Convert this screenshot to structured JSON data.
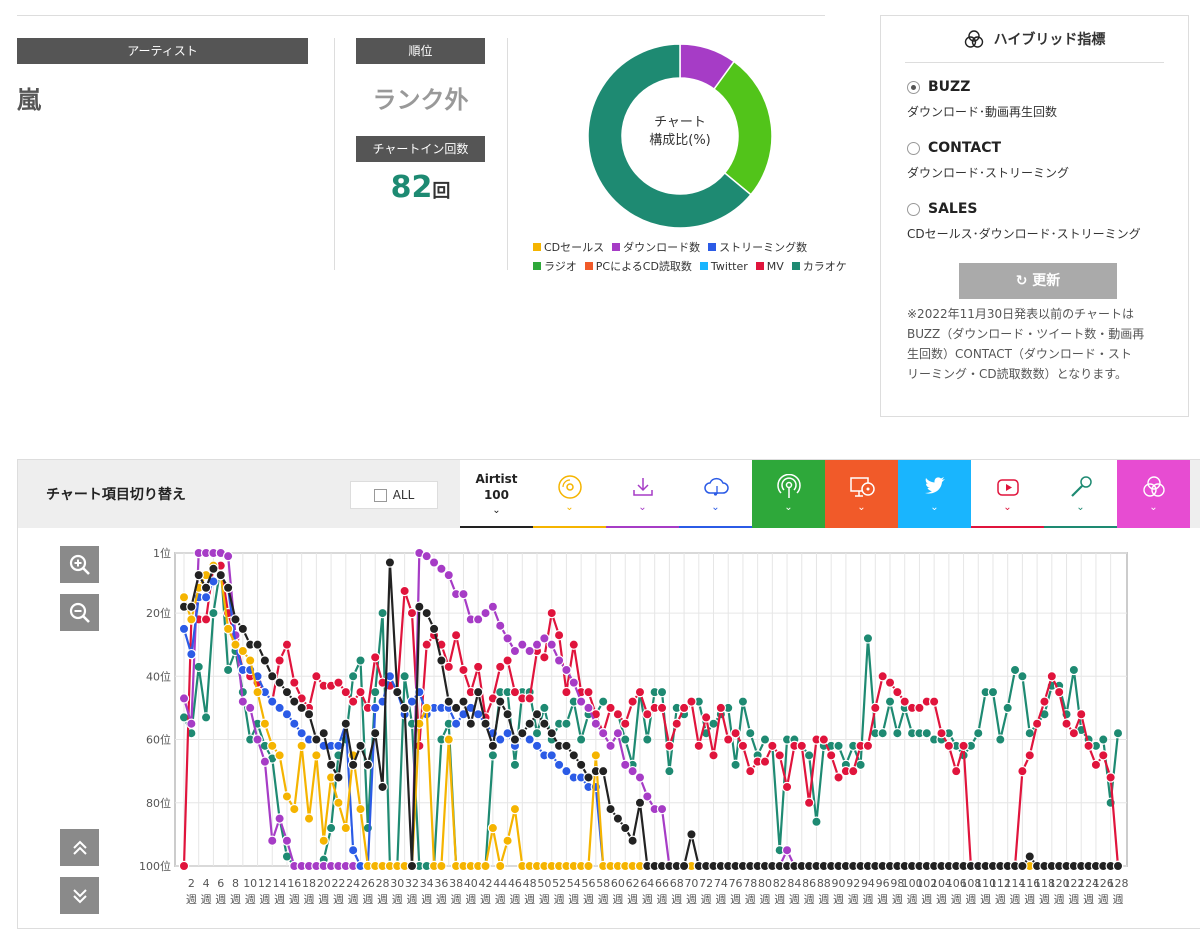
{
  "colors": {
    "cd": "#f5b400",
    "download": "#a63cc6",
    "stream": "#2b5be6",
    "radio": "#2ea83a",
    "pc": "#f15a29",
    "twitter": "#19b5fe",
    "mv": "#e0143c",
    "karaoke": "#1e8a72",
    "airtist": "#222222"
  },
  "header": {
    "artist_label": "アーティスト",
    "artist_name": "嵐",
    "rank_label": "順位",
    "rank_value": "ランク外",
    "chartin_label": "チャートイン回数",
    "chartin_value": "82",
    "chartin_unit": "回"
  },
  "donut": {
    "center_line1": "チャート",
    "center_line2": "構成比(%)",
    "legend_row1": [
      "CDセールス",
      "ダウンロード数",
      "ストリーミング数"
    ],
    "legend_row2": [
      "ラジオ",
      "PCによるCD読取数",
      "Twitter",
      "MV",
      "カラオケ"
    ]
  },
  "panel": {
    "title": "ハイブリッド指標",
    "options": [
      {
        "name": "BUZZ",
        "desc": "ダウンロード･動画再生回数",
        "selected": true
      },
      {
        "name": "CONTACT",
        "desc": "ダウンロード･ストリーミング",
        "selected": false
      },
      {
        "name": "SALES",
        "desc": "CDセールス･ダウンロード･ストリーミング",
        "selected": false
      }
    ],
    "refresh_label": "更新",
    "refresh_icon": "refresh-icon",
    "note_lines": [
      "※2022年11月30日発表以前のチャートは",
      "BUZZ（ダウンロード・ツイート数・動画再",
      "生回数）CONTACT（ダウンロード・スト",
      "リーミング・CD読取数数）となります。"
    ]
  },
  "chart_toolbar": {
    "title": "チャート項目切り替え",
    "all_label": "ALL",
    "tabs": [
      {
        "label_line1": "Airtist",
        "label_line2": "100",
        "icon": "airtist-text",
        "color": "#222222",
        "bg": "#ffffff"
      },
      {
        "icon": "cd-icon",
        "color": "#f5b400",
        "bg": "#ffffff"
      },
      {
        "icon": "download-icon",
        "color": "#a63cc6",
        "bg": "#ffffff"
      },
      {
        "icon": "cloud-music-icon",
        "color": "#2b5be6",
        "bg": "#ffffff"
      },
      {
        "icon": "radio-icon",
        "color": "#2ea83a",
        "bg": "#2ea83a"
      },
      {
        "icon": "pc-cd-icon",
        "color": "#f15a29",
        "bg": "#f15a29"
      },
      {
        "icon": "twitter-icon",
        "color": "#19b5fe",
        "bg": "#19b5fe"
      },
      {
        "icon": "youtube-icon",
        "color": "#e0143c",
        "bg": "#ffffff"
      },
      {
        "icon": "microphone-icon",
        "color": "#1e8a72",
        "bg": "#ffffff"
      },
      {
        "icon": "hybrid-icon",
        "color": "#e74cd2",
        "bg": "#e74cd2"
      }
    ]
  },
  "chart_data": [
    {
      "type": "pie",
      "title": "チャート構成比(%)",
      "categories": [
        "ダウンロード数",
        "ラジオ",
        "カラオケ"
      ],
      "values": [
        10,
        26,
        64
      ],
      "colors": [
        "#a63cc6",
        "#52c41a",
        "#1e8a72"
      ]
    },
    {
      "type": "line",
      "y_reversed": true,
      "ylim": [
        1,
        100
      ],
      "ytick_labels": [
        "1位",
        "20位",
        "40位",
        "60位",
        "80位",
        "100位"
      ],
      "yticks": [
        1,
        20,
        40,
        60,
        80,
        100
      ],
      "x_tick_labels": [
        "2\n週",
        "4\n週",
        "6\n週",
        "8\n週",
        "10\n週",
        "12\n週",
        "14\n週",
        "16\n週",
        "18\n週",
        "20\n週",
        "22\n週",
        "24\n週",
        "26\n週",
        "28\n週",
        "30\n週",
        "32\n週",
        "34\n週",
        "36\n週",
        "38\n週",
        "40\n週",
        "42\n週",
        "44\n週",
        "46\n週",
        "48\n週",
        "50\n週",
        "52\n週",
        "54\n週",
        "56\n週",
        "58\n週",
        "60\n週",
        "62\n週",
        "64\n週",
        "66\n週",
        "68\n週",
        "70\n週",
        "72\n週",
        "74\n週",
        "76\n週",
        "78\n週",
        "80\n週",
        "82\n週",
        "84\n週",
        "86\n週",
        "88\n週",
        "90\n週",
        "92\n週",
        "94\n週",
        "96\n週",
        "98\n週",
        "100\n週",
        "102\n週",
        "104\n週",
        "106\n週",
        "108\n週",
        "110\n週",
        "112\n週",
        "114\n週",
        "116\n週",
        "118\n週",
        "120\n週",
        "122\n週",
        "124\n週",
        "126\n週",
        "128\n週"
      ],
      "n_weeks": 128,
      "series": [
        {
          "key": "karaoke",
          "color": "#1e8a72",
          "values": [
            53,
            58,
            37,
            53,
            20,
            5,
            38,
            32,
            45,
            60,
            55,
            62,
            66,
            85,
            97,
            100,
            100,
            100,
            100,
            98,
            88,
            65,
            60,
            40,
            35,
            88,
            45,
            20,
            100,
            100,
            40,
            55,
            100,
            100,
            100,
            60,
            55,
            100,
            100,
            100,
            100,
            100,
            65,
            45,
            45,
            68,
            45,
            45,
            58,
            50,
            60,
            55,
            55,
            48,
            60,
            52,
            52,
            48,
            50,
            52,
            60,
            68,
            45,
            60,
            45,
            45,
            70,
            50,
            52,
            48,
            48,
            58,
            55,
            52,
            50,
            68,
            48,
            58,
            65,
            60,
            62,
            95,
            60,
            60,
            62,
            65,
            86,
            62,
            62,
            62,
            68,
            62,
            68,
            28,
            58,
            58,
            48,
            58,
            50,
            58,
            58,
            58,
            60,
            60,
            58,
            62,
            65,
            62,
            58,
            45,
            45,
            60,
            50,
            38,
            40,
            58,
            55,
            52,
            43,
            43,
            52,
            38,
            57,
            60,
            62,
            60,
            80,
            58
          ]
        },
        {
          "key": "mv",
          "color": "#e0143c",
          "values": [
            100,
            22,
            22,
            22,
            5,
            5,
            20,
            28,
            38,
            40,
            42,
            45,
            48,
            35,
            30,
            42,
            47,
            50,
            40,
            43,
            43,
            42,
            45,
            48,
            45,
            50,
            34,
            42,
            43,
            45,
            13,
            20,
            62,
            30,
            27,
            30,
            37,
            27,
            38,
            45,
            37,
            53,
            47,
            37,
            35,
            45,
            47,
            47,
            32,
            34,
            20,
            27,
            45,
            30,
            45,
            45,
            52,
            58,
            50,
            52,
            55,
            48,
            45,
            52,
            50,
            50,
            62,
            55,
            50,
            48,
            62,
            53,
            65,
            50,
            60,
            58,
            62,
            70,
            67,
            67,
            62,
            65,
            75,
            62,
            62,
            80,
            60,
            60,
            65,
            72,
            70,
            70,
            62,
            62,
            50,
            40,
            42,
            45,
            48,
            50,
            50,
            48,
            48,
            58,
            62,
            70,
            62,
            100,
            100,
            100,
            100,
            100,
            100,
            100,
            70,
            65,
            55,
            48,
            40,
            45,
            55,
            58,
            52,
            62,
            68,
            65,
            72,
            100
          ]
        },
        {
          "key": "download",
          "color": "#a63cc6",
          "values": [
            47,
            55,
            1,
            1,
            1,
            1,
            2,
            27,
            48,
            50,
            60,
            67,
            92,
            85,
            92,
            100,
            100,
            100,
            100,
            100,
            100,
            100,
            100,
            100,
            100,
            100,
            100,
            100,
            100,
            100,
            100,
            100,
            1,
            2,
            4,
            6,
            8,
            14,
            14,
            22,
            22,
            20,
            18,
            24,
            28,
            32,
            30,
            32,
            30,
            28,
            30,
            35,
            38,
            42,
            48,
            50,
            55,
            58,
            62,
            58,
            68,
            70,
            72,
            78,
            82,
            82,
            100,
            100,
            100,
            100,
            100,
            100,
            100,
            100,
            100,
            100,
            100,
            100,
            100,
            100,
            100,
            100,
            95,
            100,
            100,
            100,
            100,
            100,
            100,
            100,
            100,
            100,
            100,
            100,
            100,
            100,
            100,
            100,
            100,
            100,
            100,
            100,
            100,
            100,
            100,
            100,
            100,
            100,
            100,
            100,
            100,
            100,
            100,
            100,
            100,
            100,
            100,
            100,
            100,
            100,
            100,
            100,
            100,
            100,
            100,
            100,
            100,
            100
          ]
        },
        {
          "key": "stream",
          "color": "#2b5be6",
          "values": [
            25,
            33,
            15,
            15,
            10,
            8,
            12,
            30,
            38,
            38,
            40,
            45,
            48,
            50,
            52,
            55,
            58,
            60,
            60,
            62,
            62,
            62,
            55,
            95,
            100,
            100,
            50,
            48,
            40,
            45,
            52,
            48,
            45,
            52,
            50,
            50,
            50,
            55,
            52,
            50,
            52,
            55,
            58,
            60,
            58,
            62,
            58,
            60,
            62,
            65,
            65,
            68,
            70,
            72,
            72,
            75,
            75,
            100,
            100,
            100,
            100,
            100,
            100,
            100,
            100,
            100,
            100,
            100,
            100,
            100,
            100,
            100,
            100,
            100,
            100,
            100,
            100,
            100,
            100,
            100,
            100,
            100,
            100,
            100,
            100,
            100,
            100,
            100,
            100,
            100,
            100,
            100,
            100,
            100,
            100,
            100,
            100,
            100,
            100,
            100,
            100,
            100,
            100,
            100,
            100,
            100,
            100,
            100,
            100,
            100,
            100,
            100,
            100,
            100,
            100,
            100,
            100,
            100,
            100,
            100,
            100,
            100,
            100,
            100,
            100,
            100,
            100,
            100
          ]
        },
        {
          "key": "cd",
          "color": "#f5b400",
          "values": [
            15,
            22,
            12,
            8,
            5,
            8,
            25,
            30,
            32,
            35,
            45,
            55,
            62,
            65,
            78,
            82,
            62,
            85,
            65,
            92,
            72,
            80,
            88,
            65,
            82,
            100,
            100,
            100,
            100,
            100,
            100,
            100,
            55,
            50,
            100,
            100,
            60,
            100,
            100,
            100,
            100,
            100,
            88,
            100,
            92,
            82,
            100,
            100,
            100,
            100,
            100,
            100,
            100,
            100,
            100,
            100,
            65,
            100,
            100,
            100,
            100,
            100,
            100,
            100,
            100,
            100,
            100,
            100,
            100,
            100,
            100,
            100,
            100,
            100,
            100,
            100,
            100,
            100,
            100,
            100,
            100,
            100,
            100,
            100,
            100,
            100,
            100,
            100,
            100,
            100,
            100,
            100,
            100,
            100,
            100,
            100,
            100,
            100,
            100,
            100,
            100,
            100,
            100,
            100,
            100,
            100,
            100,
            100,
            100,
            100,
            100,
            100,
            100,
            100,
            100,
            100,
            100,
            100,
            100,
            100,
            100,
            100,
            100,
            100,
            100,
            100,
            100,
            100
          ]
        },
        {
          "key": "airtist",
          "color": "#222222",
          "values": [
            18,
            18,
            8,
            12,
            6,
            8,
            12,
            22,
            25,
            30,
            30,
            35,
            40,
            42,
            45,
            48,
            50,
            52,
            60,
            58,
            68,
            72,
            55,
            68,
            62,
            68,
            58,
            75,
            4,
            45,
            50,
            100,
            18,
            20,
            25,
            35,
            48,
            50,
            48,
            55,
            45,
            55,
            62,
            48,
            52,
            60,
            58,
            55,
            52,
            55,
            58,
            62,
            62,
            65,
            68,
            72,
            70,
            70,
            82,
            85,
            88,
            92,
            80,
            100,
            100,
            100,
            100,
            100,
            100,
            90,
            100,
            100,
            100,
            100,
            100,
            100,
            100,
            100,
            100,
            100,
            100,
            100,
            100,
            100,
            100,
            100,
            100,
            100,
            100,
            100,
            100,
            100,
            100,
            100,
            100,
            100,
            100,
            100,
            100,
            100,
            100,
            100,
            100,
            100,
            100,
            100,
            100,
            100,
            100,
            100,
            100,
            100,
            100,
            100,
            100,
            97,
            100,
            100,
            100,
            100,
            100,
            100,
            100,
            100,
            100,
            100,
            100,
            100
          ]
        }
      ]
    }
  ]
}
